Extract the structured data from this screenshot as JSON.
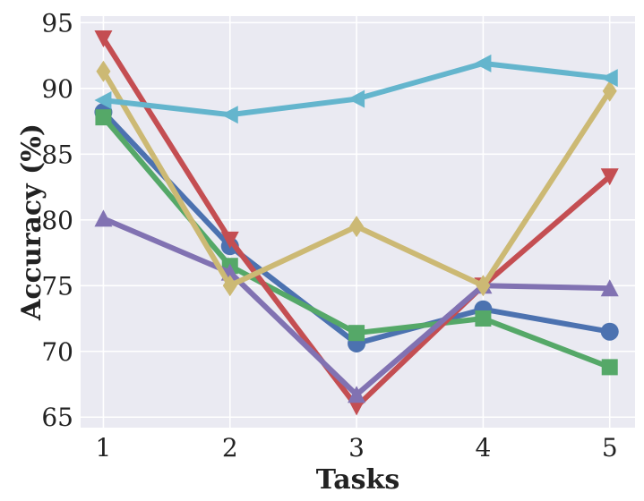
{
  "chart_data": {
    "type": "line",
    "title": "",
    "xlabel": "Tasks",
    "ylabel": "Accuracy (%)",
    "x": [
      1,
      2,
      3,
      4,
      5
    ],
    "xlim": [
      0.82,
      5.2
    ],
    "ylim": [
      64.2,
      95.5
    ],
    "xticks": [
      "1",
      "2",
      "3",
      "4",
      "5"
    ],
    "yticks": [
      "65",
      "70",
      "75",
      "80",
      "85",
      "90",
      "95"
    ],
    "grid": true,
    "background": "#eaeaf2",
    "series": [
      {
        "marker": "circle",
        "color": "#4c72b0",
        "values": [
          88.2,
          78.0,
          70.6,
          73.2,
          71.5
        ]
      },
      {
        "marker": "square",
        "color": "#55a868",
        "values": [
          87.8,
          76.5,
          71.4,
          72.5,
          68.8
        ]
      },
      {
        "marker": "triangle-down",
        "color": "#c44e52",
        "values": [
          93.8,
          78.5,
          65.8,
          75.0,
          83.3
        ]
      },
      {
        "marker": "triangle-up",
        "color": "#8172b2",
        "values": [
          80.1,
          76.0,
          66.7,
          75.0,
          74.8
        ]
      },
      {
        "marker": "diamond",
        "color": "#ccb974",
        "values": [
          91.3,
          75.0,
          79.5,
          75.0,
          89.8
        ]
      },
      {
        "marker": "triangle-left",
        "color": "#64b5cd",
        "values": [
          89.1,
          88.0,
          89.2,
          91.9,
          90.8
        ]
      }
    ]
  }
}
